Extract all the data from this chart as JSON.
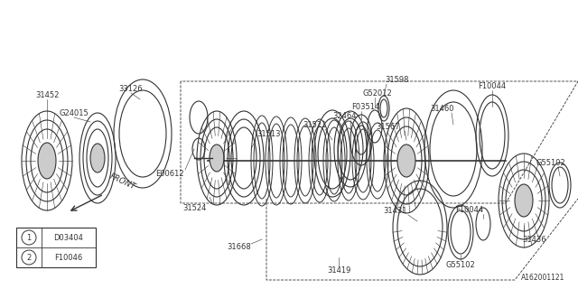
{
  "bg_color": "#ffffff",
  "line_color": "#333333",
  "text_color": "#333333",
  "diagram_id": "A162001121",
  "legend": {
    "1": "D03404",
    "2": "F10046"
  }
}
